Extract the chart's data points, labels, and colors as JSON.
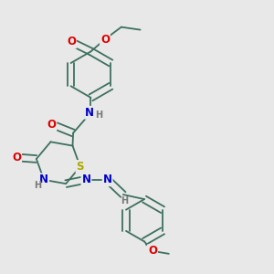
{
  "bg_color": "#e8e8e8",
  "bond_color": "#3d7060",
  "bond_width": 1.3,
  "atom_colors": {
    "O": "#dd0000",
    "N": "#0000cc",
    "S": "#aaaa00",
    "H": "#777777",
    "C": "#3d7060"
  },
  "font_size": 8.5,
  "fig_size": [
    3.0,
    3.0
  ],
  "dpi": 100,
  "xlim": [
    0,
    10
  ],
  "ylim": [
    0,
    10
  ]
}
